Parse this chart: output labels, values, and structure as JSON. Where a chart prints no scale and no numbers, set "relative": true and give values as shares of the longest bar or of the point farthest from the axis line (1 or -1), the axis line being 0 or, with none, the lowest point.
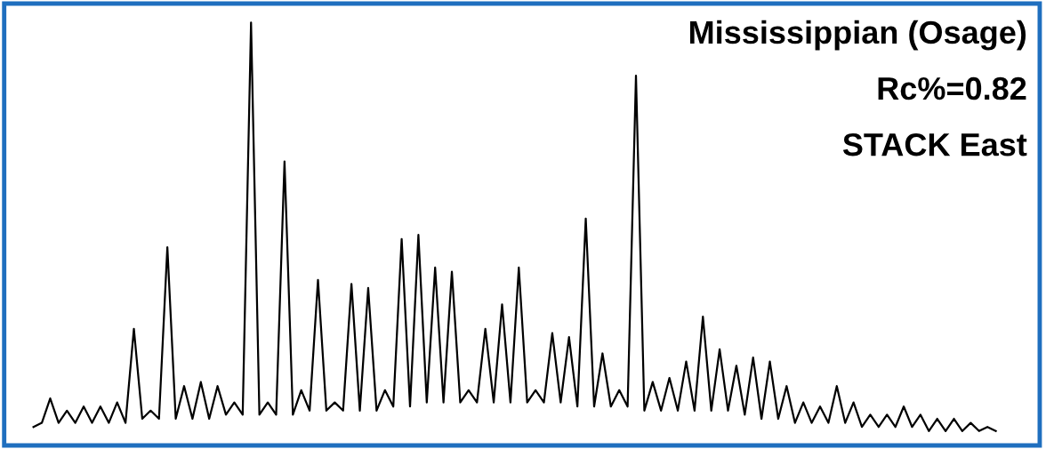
{
  "chart_data": {
    "type": "line",
    "relative": true,
    "legend": false,
    "tick_labels": false,
    "annotations": [
      "Mississippian (Osage)",
      "Rc%=0.82",
      "STACK East"
    ],
    "categories": [
      null,
      null,
      null,
      null,
      null,
      null,
      null,
      null,
      null,
      null,
      null,
      null,
      null,
      null,
      null,
      null,
      null,
      null,
      null,
      null,
      null,
      null,
      null,
      null,
      null,
      null,
      null,
      null,
      null,
      null,
      null,
      null,
      null,
      null,
      null,
      null,
      null,
      null,
      null,
      null,
      null,
      null,
      null,
      null,
      null,
      null,
      null,
      null,
      null,
      null,
      null,
      null,
      null,
      null,
      null,
      null,
      null,
      null,
      null,
      null,
      null,
      null,
      null,
      null,
      null,
      null,
      null,
      null,
      null,
      null,
      null,
      null,
      null,
      null,
      null,
      null,
      null,
      null,
      null,
      null,
      null,
      null,
      null,
      null,
      null,
      null,
      null,
      null,
      null,
      null,
      null,
      null,
      null,
      null,
      null,
      null,
      null,
      null,
      null,
      null,
      null,
      null,
      null,
      null,
      null,
      null,
      null,
      null,
      null,
      null,
      null,
      null,
      null,
      null,
      null,
      null
    ],
    "series": [
      {
        "color": "#000000",
        "values": [
          0.01,
          0.02,
          0.08,
          0.02,
          0.05,
          0.02,
          0.06,
          0.02,
          0.06,
          0.02,
          0.07,
          0.02,
          0.25,
          0.03,
          0.05,
          0.03,
          0.45,
          0.03,
          0.11,
          0.03,
          0.12,
          0.03,
          0.11,
          0.04,
          0.07,
          0.04,
          1.0,
          0.04,
          0.07,
          0.04,
          0.66,
          0.04,
          0.1,
          0.05,
          0.37,
          0.05,
          0.07,
          0.05,
          0.36,
          0.05,
          0.35,
          0.05,
          0.1,
          0.06,
          0.47,
          0.06,
          0.48,
          0.07,
          0.4,
          0.07,
          0.39,
          0.07,
          0.1,
          0.07,
          0.25,
          0.07,
          0.31,
          0.07,
          0.4,
          0.07,
          0.1,
          0.07,
          0.24,
          0.07,
          0.23,
          0.06,
          0.52,
          0.06,
          0.19,
          0.06,
          0.1,
          0.06,
          0.87,
          0.05,
          0.12,
          0.05,
          0.13,
          0.05,
          0.17,
          0.05,
          0.28,
          0.05,
          0.2,
          0.05,
          0.16,
          0.04,
          0.18,
          0.03,
          0.17,
          0.03,
          0.11,
          0.02,
          0.07,
          0.02,
          0.06,
          0.02,
          0.11,
          0.02,
          0.07,
          0.01,
          0.04,
          0.01,
          0.04,
          0.01,
          0.06,
          0.01,
          0.04,
          0.0,
          0.03,
          0.0,
          0.03,
          0.0,
          0.02,
          0.0,
          0.01,
          0.0
        ]
      }
    ]
  }
}
